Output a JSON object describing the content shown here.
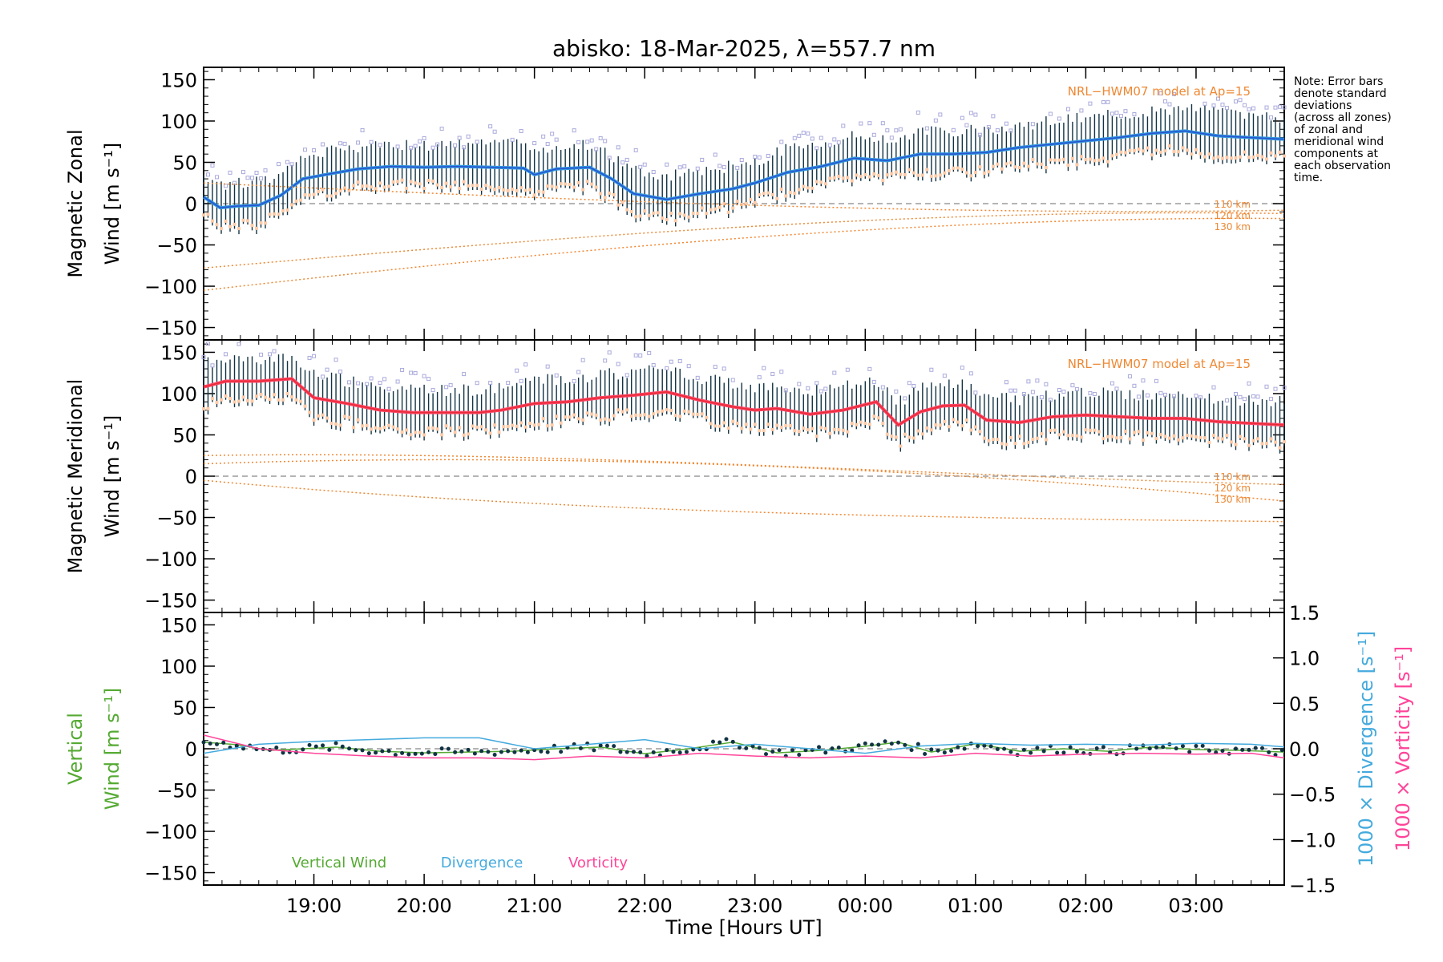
{
  "title": "abisko: 18-Mar-2025, λ=557.7 nm",
  "note_lines": [
    "Note: Error bars",
    "denote standard",
    "deviations",
    "(across all zones)",
    "of zonal and",
    "meridional wind",
    "components at",
    "each observation",
    "time."
  ],
  "xlabel": "Time [Hours UT]",
  "x_ticks": [
    "19:00",
    "20:00",
    "21:00",
    "22:00",
    "23:00",
    "00:00",
    "01:00",
    "02:00",
    "03:00"
  ],
  "y_ticks": [
    "150",
    "100",
    "50",
    "0",
    "−50",
    "−100",
    "−150"
  ],
  "y2_ticks": [
    "1.5",
    "1.0",
    "0.5",
    "0.0",
    "−0.5",
    "−1.0",
    "−1.5"
  ],
  "model_label": "NRL−HWM07 model at Ap=15",
  "model_alt_labels": [
    "110 km",
    "120 km",
    "130 km"
  ],
  "colors": {
    "zonal_main": "#3399dd",
    "zonal_dark": "#2233cc",
    "meridional_main": "#ff4466",
    "meridional_dark": "#dd2222",
    "model": "#ee8833",
    "vertical": "#55aa33",
    "divergence": "#44aadd",
    "vorticity": "#ff4499",
    "scatter": "#aaaadd",
    "errbar": "#113344"
  },
  "chart_data": [
    {
      "type": "line",
      "panel": "zonal",
      "ylabel_lines": [
        "Magnetic Zonal",
        "Wind [m s⁻¹]"
      ],
      "xlim": [
        18.0,
        27.8
      ],
      "ylim": [
        -165,
        165
      ],
      "x_unit": "hours UT (values above 24 are after midnight)",
      "series": [
        {
          "x": [
            18.0,
            18.15,
            18.3,
            18.5,
            18.7,
            18.9,
            19.1,
            19.4,
            19.7,
            20.0,
            20.3,
            20.6,
            20.9,
            21.0,
            21.2,
            21.5,
            21.7,
            21.9,
            22.2,
            22.5,
            22.8,
            23.0,
            23.3,
            23.6,
            23.9,
            24.2,
            24.5,
            24.8,
            25.1,
            25.4,
            25.7,
            26.0,
            26.3,
            26.6,
            26.9,
            27.2,
            27.5,
            27.8
          ],
          "y": [
            8,
            -5,
            -3,
            -2,
            10,
            30,
            35,
            42,
            45,
            44,
            45,
            44,
            43,
            35,
            42,
            44,
            30,
            12,
            5,
            12,
            18,
            25,
            38,
            45,
            55,
            52,
            60,
            60,
            62,
            68,
            72,
            76,
            80,
            85,
            88,
            82,
            80,
            78
          ]
        }
      ]
    },
    {
      "type": "line",
      "panel": "meridional",
      "ylabel_lines": [
        "Magnetic Meridional",
        "Wind [m s⁻¹]"
      ],
      "xlim": [
        18.0,
        27.8
      ],
      "ylim": [
        -165,
        165
      ],
      "series": [
        {
          "x": [
            18.0,
            18.2,
            18.5,
            18.8,
            19.0,
            19.3,
            19.6,
            19.9,
            20.2,
            20.5,
            20.7,
            21.0,
            21.3,
            21.6,
            21.9,
            22.2,
            22.5,
            22.8,
            23.0,
            23.2,
            23.5,
            23.8,
            24.1,
            24.3,
            24.5,
            24.7,
            24.9,
            25.1,
            25.4,
            25.7,
            26.0,
            26.3,
            26.6,
            26.9,
            27.2,
            27.5,
            27.8
          ],
          "y": [
            108,
            115,
            115,
            118,
            95,
            88,
            80,
            77,
            77,
            77,
            80,
            88,
            90,
            95,
            98,
            102,
            92,
            84,
            80,
            82,
            75,
            80,
            90,
            62,
            78,
            85,
            86,
            68,
            65,
            72,
            74,
            72,
            70,
            70,
            66,
            64,
            62
          ]
        }
      ]
    },
    {
      "type": "line",
      "panel": "vertical",
      "ylabel_lines": [
        "Vertical",
        "Wind [m s⁻¹]"
      ],
      "y2label_div": "1000 × Divergence [s⁻¹]",
      "y2label_vort": "1000 × Vorticity [s⁻¹]",
      "xlim": [
        18.0,
        27.8
      ],
      "ylim": [
        -165,
        165
      ],
      "y2lim": [
        -1.5,
        1.5
      ],
      "series": [
        {
          "name": "Vertical Wind",
          "x": [
            18.0,
            18.3,
            18.6,
            18.9,
            19.2,
            19.6,
            20.0,
            20.4,
            20.8,
            21.2,
            21.6,
            22.0,
            22.4,
            22.8,
            23.2,
            23.6,
            24.0,
            24.3,
            24.6,
            25.0,
            25.4,
            25.8,
            26.2,
            26.6,
            27.0,
            27.4,
            27.8
          ],
          "y": [
            8,
            5,
            -2,
            0,
            2,
            -3,
            -5,
            -4,
            -3,
            0,
            2,
            -6,
            0,
            8,
            -5,
            -2,
            3,
            8,
            -4,
            6,
            -3,
            0,
            -3,
            2,
            -1,
            -2,
            -4
          ]
        },
        {
          "name": "Divergence",
          "x": [
            18.0,
            18.5,
            19.0,
            19.5,
            20.0,
            20.5,
            21.0,
            21.5,
            22.0,
            22.5,
            23.0,
            23.5,
            24.0,
            24.5,
            25.0,
            25.5,
            26.0,
            26.5,
            27.0,
            27.5,
            27.8
          ],
          "y": [
            -0.05,
            0.05,
            0.08,
            0.1,
            0.12,
            0.12,
            0.0,
            0.05,
            0.1,
            0.0,
            0.05,
            0.0,
            -0.05,
            0.03,
            0.06,
            0.04,
            0.05,
            0.04,
            0.06,
            0.05,
            0.02
          ]
        },
        {
          "name": "Vorticity",
          "x": [
            18.0,
            18.5,
            19.0,
            19.5,
            20.0,
            20.5,
            21.0,
            21.5,
            22.0,
            22.5,
            23.0,
            23.5,
            24.0,
            24.5,
            25.0,
            25.5,
            26.0,
            26.5,
            27.0,
            27.5,
            27.8
          ],
          "y": [
            0.15,
            0.0,
            -0.05,
            -0.08,
            -0.1,
            -0.1,
            -0.12,
            -0.08,
            -0.1,
            -0.05,
            -0.08,
            -0.1,
            -0.08,
            -0.1,
            -0.05,
            -0.08,
            -0.06,
            -0.05,
            -0.06,
            -0.05,
            -0.1
          ]
        }
      ]
    }
  ]
}
